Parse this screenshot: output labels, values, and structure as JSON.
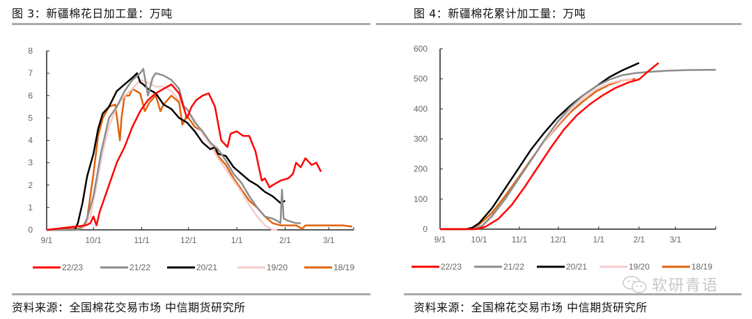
{
  "figures": [
    {
      "title": "图 3：新疆棉花日加工量：万吨",
      "source": "资料来源：全国棉花交易市场 中信期货研究所"
    },
    {
      "title": "图 4：新疆棉花累计加工量：万吨",
      "source": "资料来源：全国棉花交易市场 中信期货研究所"
    }
  ],
  "watermark": "软研青语",
  "colors": {
    "22/23": "#ff0000",
    "21/22": "#8c8c8c",
    "20/21": "#000000",
    "19/20": "#f4cccc",
    "18/19": "#e0620d"
  },
  "chart_data": [
    {
      "type": "line",
      "title": "新疆棉花日加工量：万吨",
      "xlabel": "",
      "ylabel": "万吨",
      "x_ticks": [
        "9/1",
        "10/1",
        "11/1",
        "12/1",
        "1/1",
        "2/1",
        "3/1"
      ],
      "x_unit": "days since 9/1",
      "x_tick_days": [
        0,
        30,
        61,
        91,
        122,
        153,
        181
      ],
      "xlim": [
        0,
        197
      ],
      "y_ticks": [
        0,
        1,
        2,
        3,
        4,
        5,
        6,
        7,
        8
      ],
      "ylim": [
        0,
        8
      ],
      "grid": false,
      "legend_position": "bottom",
      "series": [
        {
          "name": "22/23",
          "x": [
            0,
            25,
            28,
            30,
            32,
            34,
            36,
            40,
            45,
            50,
            55,
            60,
            65,
            70,
            75,
            80,
            85,
            90,
            93,
            96,
            100,
            104,
            108,
            112,
            116,
            118,
            122,
            126,
            130,
            134,
            138,
            140,
            143,
            145,
            150,
            155,
            158,
            160,
            163,
            166,
            170,
            173,
            176
          ],
          "y": [
            0,
            0.2,
            0.3,
            0.6,
            0.2,
            0.8,
            1.2,
            2.0,
            3.0,
            3.7,
            4.6,
            5.3,
            5.8,
            6.1,
            6.3,
            6.5,
            6.1,
            5.0,
            5.5,
            5.8,
            6.0,
            6.1,
            5.5,
            4.0,
            3.7,
            4.3,
            4.4,
            4.2,
            4.2,
            3.5,
            2.2,
            2.3,
            1.9,
            2.0,
            2.2,
            2.3,
            2.5,
            3.0,
            2.8,
            3.2,
            2.9,
            3.0,
            2.6
          ]
        },
        {
          "name": "21/22",
          "x": [
            0,
            20,
            25,
            30,
            35,
            40,
            45,
            50,
            55,
            60,
            62,
            65,
            68,
            70,
            75,
            80,
            85,
            88,
            90,
            95,
            100,
            105,
            110,
            115,
            120,
            125,
            130,
            135,
            140,
            145,
            148,
            150,
            151,
            152,
            155,
            160,
            163
          ],
          "y": [
            0,
            0,
            0.3,
            1.5,
            3.5,
            5.0,
            5.5,
            6.2,
            6.7,
            7.0,
            7.2,
            6.0,
            6.8,
            7.0,
            6.9,
            6.7,
            6.3,
            5.5,
            5.4,
            4.8,
            4.4,
            3.9,
            3.6,
            3.1,
            2.5,
            2.1,
            1.5,
            1.0,
            0.6,
            0.5,
            0.4,
            0.3,
            1.8,
            0.5,
            0.4,
            0.3,
            0.3
          ]
        },
        {
          "name": "20/21",
          "x": [
            0,
            18,
            20,
            23,
            26,
            30,
            33,
            36,
            40,
            45,
            50,
            55,
            58,
            60,
            62,
            65,
            70,
            75,
            80,
            85,
            90,
            95,
            100,
            105,
            108,
            110,
            115,
            120,
            125,
            130,
            135,
            140,
            145,
            150,
            153
          ],
          "y": [
            0,
            0,
            0.3,
            1.2,
            2.4,
            3.4,
            4.5,
            5.2,
            5.5,
            6.2,
            6.5,
            6.8,
            7.0,
            6.6,
            6.5,
            6.3,
            6.1,
            5.6,
            5.4,
            5.0,
            4.8,
            4.4,
            3.9,
            3.6,
            3.7,
            3.4,
            3.3,
            2.8,
            2.5,
            2.2,
            2.0,
            1.7,
            1.5,
            1.2,
            1.3
          ]
        },
        {
          "name": "19/20",
          "x": [
            0,
            20,
            24,
            28,
            32,
            36,
            40,
            45,
            50,
            55,
            60,
            65,
            70,
            75,
            80,
            85,
            90,
            95,
            100,
            105,
            110,
            115,
            120,
            125,
            130,
            135,
            140,
            145,
            148
          ],
          "y": [
            0,
            0,
            0.2,
            0.6,
            2.0,
            3.5,
            4.6,
            5.5,
            6.0,
            6.3,
            6.7,
            6.6,
            6.4,
            6.4,
            6.2,
            5.8,
            5.4,
            4.9,
            4.3,
            3.8,
            3.2,
            2.7,
            2.2,
            1.7,
            1.1,
            0.6,
            0.2,
            0.0,
            0.0
          ]
        },
        {
          "name": "18/19",
          "x": [
            0,
            20,
            23,
            26,
            30,
            33,
            36,
            40,
            44,
            47,
            48,
            50,
            53,
            55,
            60,
            63,
            66,
            70,
            73,
            75,
            80,
            85,
            87,
            90,
            95,
            100,
            105,
            110,
            115,
            120,
            125,
            130,
            135,
            140,
            145,
            150,
            155,
            160,
            164,
            166,
            170,
            180,
            190,
            196
          ],
          "y": [
            0,
            0.05,
            0.1,
            0.5,
            2.5,
            4.2,
            5.0,
            5.5,
            5.6,
            4.0,
            5.0,
            6.0,
            6.0,
            6.3,
            6.1,
            5.3,
            5.7,
            6.0,
            5.3,
            5.6,
            6.0,
            5.7,
            4.7,
            5.1,
            4.6,
            4.4,
            3.8,
            3.3,
            2.9,
            2.3,
            1.8,
            1.3,
            1.0,
            0.6,
            0.3,
            0.2,
            0.2,
            0.2,
            0.05,
            0.2,
            0.2,
            0.2,
            0.2,
            0.15
          ]
        }
      ],
      "legend": [
        "22/23",
        "21/22",
        "20/21",
        "19/20",
        "18/19"
      ]
    },
    {
      "type": "line",
      "title": "新疆棉花累计加工量：万吨",
      "xlabel": "",
      "ylabel": "万吨",
      "x_ticks": [
        "9/1",
        "10/1",
        "11/1",
        "12/1",
        "1/1",
        "2/1",
        "3/1"
      ],
      "x_unit": "days since 9/1",
      "x_tick_days": [
        0,
        30,
        61,
        91,
        122,
        153,
        181
      ],
      "xlim": [
        0,
        212
      ],
      "y_ticks": [
        0,
        100,
        200,
        300,
        400,
        500,
        600
      ],
      "ylim": [
        0,
        600
      ],
      "grid": false,
      "legend_position": "bottom",
      "series": [
        {
          "name": "22/23",
          "x": [
            0,
            28,
            35,
            45,
            55,
            65,
            75,
            85,
            95,
            105,
            115,
            125,
            135,
            145,
            153,
            160,
            168
          ],
          "y": [
            0,
            0,
            8,
            35,
            80,
            140,
            205,
            270,
            330,
            378,
            415,
            445,
            470,
            488,
            498,
            525,
            553
          ]
        },
        {
          "name": "21/22",
          "x": [
            0,
            25,
            32,
            40,
            50,
            60,
            70,
            80,
            90,
            100,
            110,
            120,
            130,
            140,
            150,
            160,
            175,
            190,
            212
          ],
          "y": [
            0,
            0,
            10,
            45,
            100,
            165,
            230,
            295,
            355,
            405,
            445,
            475,
            497,
            512,
            519,
            523,
            527,
            529,
            530
          ]
        },
        {
          "name": "20/21",
          "x": [
            0,
            20,
            25,
            30,
            40,
            50,
            60,
            70,
            80,
            90,
            100,
            110,
            120,
            130,
            140,
            153
          ],
          "y": [
            0,
            0,
            5,
            20,
            70,
            135,
            200,
            265,
            320,
            370,
            410,
            445,
            475,
            505,
            528,
            553
          ]
        },
        {
          "name": "19/20",
          "x": [
            0,
            25,
            32,
            40,
            50,
            60,
            70,
            80,
            90,
            100,
            110,
            120,
            130,
            140,
            148
          ],
          "y": [
            0,
            0,
            8,
            40,
            100,
            165,
            228,
            290,
            345,
            395,
            435,
            465,
            485,
            496,
            500
          ]
        },
        {
          "name": "18/19",
          "x": [
            0,
            22,
            30,
            40,
            50,
            60,
            70,
            80,
            90,
            100,
            110,
            120,
            130,
            140,
            150
          ],
          "y": [
            0,
            0,
            15,
            55,
            110,
            170,
            232,
            290,
            340,
            388,
            425,
            458,
            480,
            495,
            500
          ]
        }
      ],
      "legend": [
        "22/23",
        "21/22",
        "20/21",
        "19/20",
        "18/19"
      ]
    }
  ]
}
